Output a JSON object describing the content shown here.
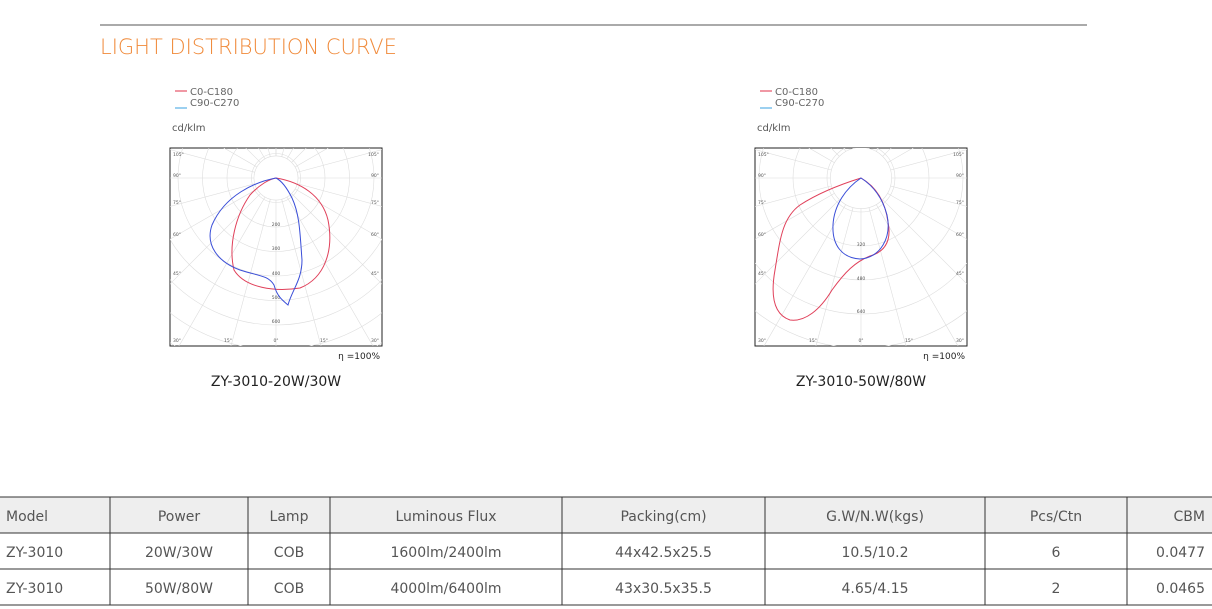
{
  "header": {
    "title": "LIGHT DISTRIBUTION CURVE"
  },
  "diagrams": [
    {
      "legend": [
        "C0-C180",
        "C90-C270"
      ],
      "unit": "cd/klm",
      "angle_labels": [
        "105°",
        "90°",
        "75°",
        "60°",
        "45°",
        "30°",
        "15°",
        "0°"
      ],
      "radial_labels": [
        "200",
        "300",
        "400",
        "500",
        "600"
      ],
      "efficiency": "η =100%",
      "caption": "ZY-3010-20W/30W"
    },
    {
      "legend": [
        "C0-C180",
        "C90-C270"
      ],
      "unit": "cd/klm",
      "angle_labels": [
        "105°",
        "90°",
        "75°",
        "60°",
        "45°",
        "30°",
        "15°",
        "0°"
      ],
      "radial_labels": [
        "320",
        "480",
        "640"
      ],
      "efficiency": "η =100%",
      "caption": "ZY-3010-50W/80W"
    }
  ],
  "table": {
    "columns": [
      "Model",
      "Power",
      "Lamp",
      "Luminous Flux",
      "Packing(cm)",
      "G.W/N.W(kgs)",
      "Pcs/Ctn",
      "CBM"
    ],
    "rows": [
      [
        "ZY-3010",
        "20W/30W",
        "COB",
        "1600lm/2400lm",
        "44x42.5x25.5",
        "10.5/10.2",
        "6",
        "0.0477"
      ],
      [
        "ZY-3010",
        "50W/80W",
        "COB",
        "4000lm/6400lm",
        "43x30.5x35.5",
        "4.65/4.15",
        "2",
        "0.0465"
      ]
    ]
  }
}
